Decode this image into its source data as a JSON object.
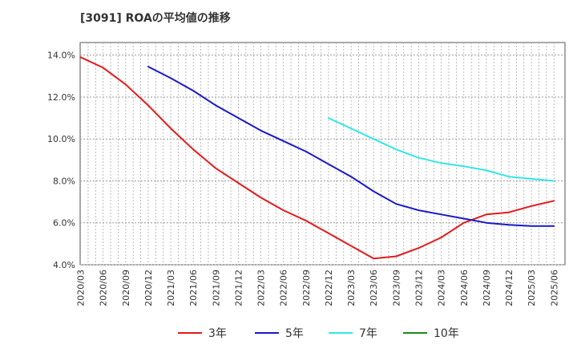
{
  "chart_data": {
    "type": "line",
    "title": "[3091]  ROAの平均値の推移",
    "xlabel": "",
    "ylabel": "",
    "x": [
      "2020/03",
      "2020/06",
      "2020/09",
      "2020/12",
      "2021/03",
      "2021/06",
      "2021/09",
      "2021/12",
      "2022/03",
      "2022/06",
      "2022/09",
      "2022/12",
      "2023/03",
      "2023/06",
      "2023/09",
      "2023/12",
      "2024/03",
      "2024/06",
      "2024/09",
      "2024/12",
      "2025/03",
      "2025/06"
    ],
    "y_ticks": [
      "4.0%",
      "6.0%",
      "8.0%",
      "10.0%",
      "12.0%",
      "14.0%"
    ],
    "ylim": [
      4.0,
      14.6
    ],
    "grid": true,
    "legend_position": "bottom",
    "series": [
      {
        "name": "3年",
        "color": "#e41a1c",
        "points": [
          [
            "2020/03",
            13.9
          ],
          [
            "2020/06",
            13.4
          ],
          [
            "2020/09",
            12.6
          ],
          [
            "2020/12",
            11.6
          ],
          [
            "2021/03",
            10.5
          ],
          [
            "2021/06",
            9.5
          ],
          [
            "2021/09",
            8.6
          ],
          [
            "2021/12",
            7.9
          ],
          [
            "2022/03",
            7.2
          ],
          [
            "2022/06",
            6.6
          ],
          [
            "2022/09",
            6.1
          ],
          [
            "2022/12",
            5.5
          ],
          [
            "2023/03",
            4.9
          ],
          [
            "2023/06",
            4.3
          ],
          [
            "2023/09",
            4.4
          ],
          [
            "2023/12",
            4.8
          ],
          [
            "2024/03",
            5.3
          ],
          [
            "2024/06",
            6.0
          ],
          [
            "2024/09",
            6.4
          ],
          [
            "2024/12",
            6.5
          ],
          [
            "2025/03",
            6.8
          ],
          [
            "2025/06",
            7.05
          ]
        ]
      },
      {
        "name": "5年",
        "color": "#1919c8",
        "points": [
          [
            "2020/12",
            13.45
          ],
          [
            "2021/03",
            12.9
          ],
          [
            "2021/06",
            12.3
          ],
          [
            "2021/09",
            11.6
          ],
          [
            "2021/12",
            11.0
          ],
          [
            "2022/03",
            10.4
          ],
          [
            "2022/06",
            9.9
          ],
          [
            "2022/09",
            9.4
          ],
          [
            "2022/12",
            8.8
          ],
          [
            "2023/03",
            8.2
          ],
          [
            "2023/06",
            7.5
          ],
          [
            "2023/09",
            6.9
          ],
          [
            "2023/12",
            6.6
          ],
          [
            "2024/03",
            6.4
          ],
          [
            "2024/06",
            6.2
          ],
          [
            "2024/09",
            6.0
          ],
          [
            "2024/12",
            5.9
          ],
          [
            "2025/03",
            5.85
          ],
          [
            "2025/06",
            5.85
          ]
        ]
      },
      {
        "name": "7年",
        "color": "#33e6e6",
        "points": [
          [
            "2022/12",
            11.0
          ],
          [
            "2023/03",
            10.5
          ],
          [
            "2023/06",
            10.0
          ],
          [
            "2023/09",
            9.5
          ],
          [
            "2023/12",
            9.1
          ],
          [
            "2024/03",
            8.85
          ],
          [
            "2024/06",
            8.7
          ],
          [
            "2024/09",
            8.5
          ],
          [
            "2024/12",
            8.2
          ],
          [
            "2025/03",
            8.1
          ],
          [
            "2025/06",
            8.0
          ]
        ]
      },
      {
        "name": "10年",
        "color": "#1a8c1a",
        "points": []
      }
    ]
  }
}
